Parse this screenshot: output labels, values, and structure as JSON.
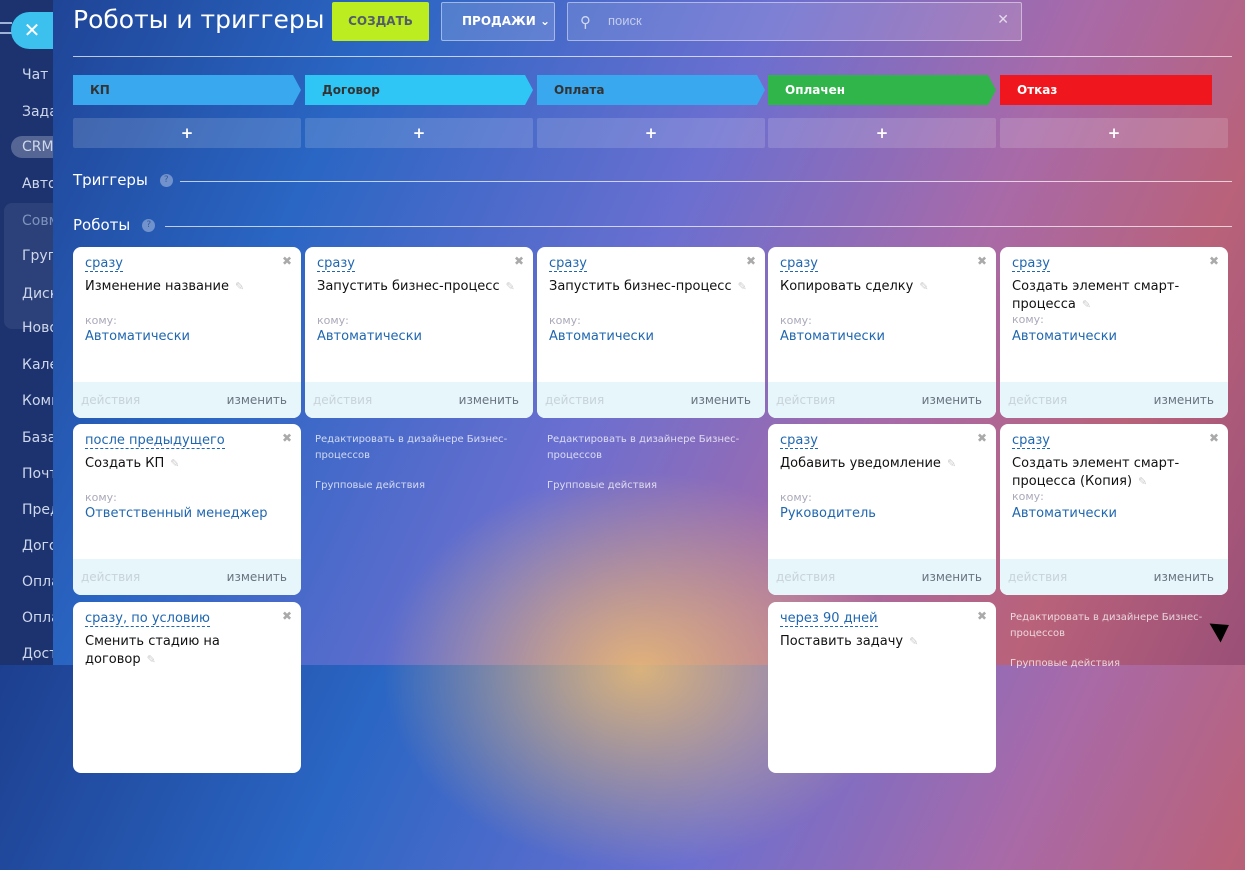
{
  "sidebar": {
    "items": [
      "Чат и",
      "Зада",
      "CRM",
      "Авто",
      "Совм",
      "Груп",
      "Диск",
      "Ново",
      "Кале",
      "Комп",
      "База",
      "Почт",
      "Пред",
      "Дого",
      "Опла",
      "Опла",
      "Дост"
    ]
  },
  "header": {
    "title": "Роботы и триггеры",
    "create_label": "СОЗДАТЬ",
    "pipeline_label": "ПРОДАЖИ",
    "search_placeholder": "поиск"
  },
  "stages": [
    {
      "label": "КП",
      "color": "#39a8ef"
    },
    {
      "label": "Договор",
      "color": "#2fc6f6"
    },
    {
      "label": "Оплата",
      "color": "#39a8ef"
    },
    {
      "label": "Оплачен",
      "color": "#2fb54a"
    },
    {
      "label": "Отказ",
      "color": "#f0161d"
    }
  ],
  "add_label": "+",
  "sections": {
    "triggers": "Триггеры",
    "robots": "Роботы",
    "help": "?"
  },
  "card_labels": {
    "to": "кому:",
    "actions": "действия",
    "edit": "изменить"
  },
  "cards": [
    {
      "when": "сразу",
      "name": "Изменение название",
      "resp": "Автоматически"
    },
    {
      "when": "сразу",
      "name": "Запустить бизнес-процесс",
      "resp": "Автоматически"
    },
    {
      "when": "сразу",
      "name": "Запустить бизнес-процесс",
      "resp": "Автоматически"
    },
    {
      "when": "сразу",
      "name": "Копировать сделку",
      "resp": "Автоматически"
    },
    {
      "when": "сразу",
      "name": "Создать элемент смарт-процесса",
      "resp": "Автоматически"
    },
    {
      "when": "после предыдущего",
      "name": "Создать КП",
      "resp": "Ответственный менеджер"
    },
    {
      "when": "сразу",
      "name": "Добавить уведомление",
      "resp": "Руководитель"
    },
    {
      "when": "сразу",
      "name": "Создать элемент смарт-процесса (Копия)",
      "resp": "Автоматически"
    },
    {
      "when": "сразу, по условию",
      "name": "Сменить стадию на договор",
      "resp": ""
    },
    {
      "when": "через 90 дней",
      "name": "Поставить задачу",
      "resp": ""
    }
  ],
  "links": {
    "designer": "Редактировать в дизайнере Бизнес-процессов",
    "group": "Групповые действия"
  }
}
